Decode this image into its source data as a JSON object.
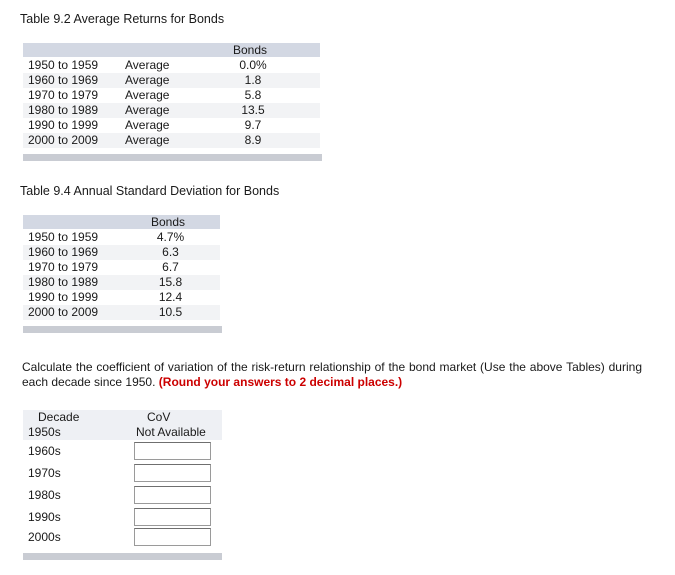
{
  "table1": {
    "title": "Table 9.2 Average Returns for Bonds",
    "column_header": "Bonds",
    "rows": [
      {
        "period": "1950 to 1959",
        "stat": "Average",
        "value": "0.0%"
      },
      {
        "period": "1960 to 1969",
        "stat": "Average",
        "value": "1.8"
      },
      {
        "period": "1970 to 1979",
        "stat": "Average",
        "value": "5.8"
      },
      {
        "period": "1980 to 1989",
        "stat": "Average",
        "value": "13.5"
      },
      {
        "period": "1990 to 1999",
        "stat": "Average",
        "value": "9.7"
      },
      {
        "period": "2000 to 2009",
        "stat": "Average",
        "value": "8.9"
      }
    ]
  },
  "table2": {
    "title": "Table 9.4 Annual Standard Deviation for Bonds",
    "column_header": "Bonds",
    "rows": [
      {
        "period": "1950 to 1959",
        "value": "4.7%"
      },
      {
        "period": "1960 to 1969",
        "value": "6.3"
      },
      {
        "period": "1970 to 1979",
        "value": "6.7"
      },
      {
        "period": "1980 to 1989",
        "value": "15.8"
      },
      {
        "period": "1990 to 1999",
        "value": "12.4"
      },
      {
        "period": "2000 to 2009",
        "value": "10.5"
      }
    ]
  },
  "question": {
    "text": "Calculate the coefficient of variation of the risk-return relationship of the bond market (Use the above Tables) during each decade since 1950.",
    "instruction": "(Round your answers to 2 decimal places.)",
    "instruction_color": "#cc0000"
  },
  "answers": {
    "header_decade": "Decade",
    "header_cov": "CoV",
    "first_row": {
      "decade": "1950s",
      "value": "Not Available"
    },
    "rows": [
      {
        "decade": "1960s",
        "value": ""
      },
      {
        "decade": "1970s",
        "value": ""
      },
      {
        "decade": "1980s",
        "value": ""
      },
      {
        "decade": "1990s",
        "value": ""
      },
      {
        "decade": "2000s",
        "value": ""
      }
    ]
  }
}
